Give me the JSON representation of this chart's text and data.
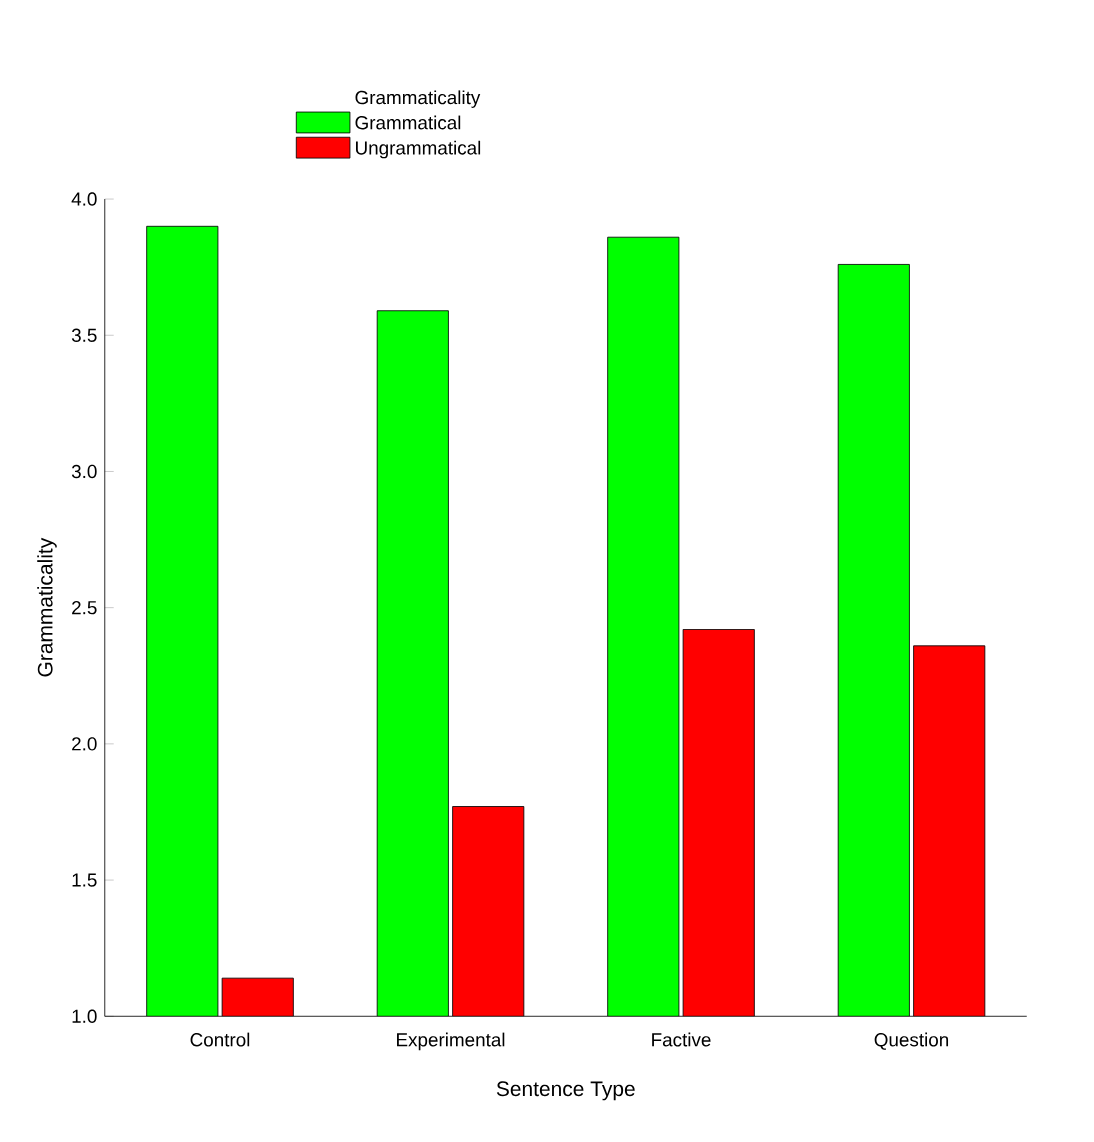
{
  "chart_data": {
    "type": "bar",
    "legend_title": "Grammaticality",
    "xlabel": "Sentence Type",
    "ylabel": "Grammaticality",
    "categories": [
      "Control",
      "Experimental",
      "Factive",
      "Question"
    ],
    "series": [
      {
        "name": "Grammatical",
        "color": "#00ff00",
        "values": [
          3.9,
          3.59,
          3.86,
          3.76
        ]
      },
      {
        "name": "Ungrammatical",
        "color": "#ff0000",
        "values": [
          1.14,
          1.77,
          2.42,
          2.36
        ]
      }
    ],
    "ylim": [
      1.0,
      4.0
    ],
    "yticks": [
      {
        "value": 1.0,
        "label": "1.0"
      },
      {
        "value": 1.5,
        "label": "1.5"
      },
      {
        "value": 2.0,
        "label": "2.0"
      },
      {
        "value": 2.5,
        "label": "2.5"
      },
      {
        "value": 3.0,
        "label": "3.0"
      },
      {
        "value": 3.5,
        "label": "3.5"
      },
      {
        "value": 4.0,
        "label": "4.0"
      }
    ],
    "legend": "top"
  }
}
